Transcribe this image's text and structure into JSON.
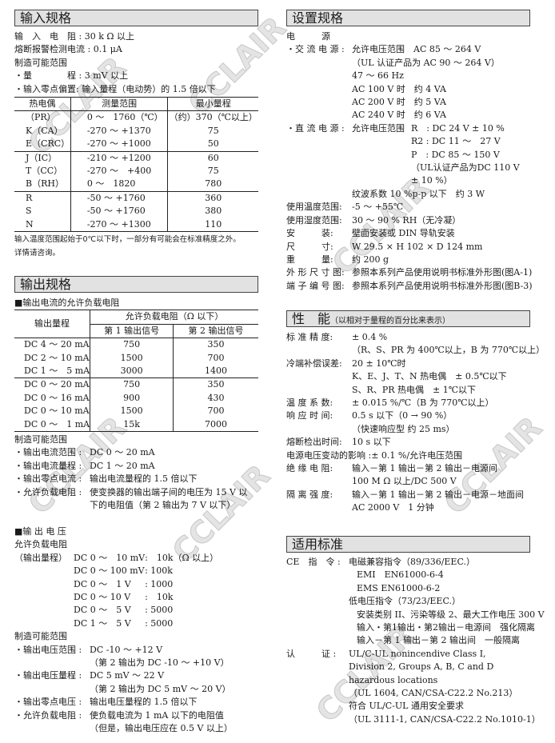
{
  "watermark": "CCLAIR",
  "input": {
    "title": "输入规格",
    "lines": [
      "输　入　电　阻 : 30 k Ω 以上",
      "熔断报警检测电流 : 0.1 μA",
      "制造可能范围",
      "・量　　　　程 : 3 mV 以上",
      "・输入零点偏置: 输入量程（电动势）的 1.5 倍以下"
    ],
    "table": {
      "headers": [
        "热电偶",
        "测量范围",
        "最小量程"
      ],
      "groups": [
        [
          [
            "（PR）",
            "0 ～　1760（℃）",
            "（约）370（℃以上）"
          ],
          [
            "K（CA）",
            "-270 ～ +1370",
            "75"
          ],
          [
            "E（CRC）",
            "-270 ～ +1000",
            "50"
          ]
        ],
        [
          [
            "J（IC）",
            "-210 ～ +1200",
            "60"
          ],
          [
            "T（CC）",
            "-270 ～　+400",
            "75"
          ],
          [
            "B（RH）",
            "0 ～　1820",
            "780"
          ]
        ],
        [
          [
            "R",
            "-50 ～ +1760",
            "360"
          ],
          [
            "S",
            "-50 ～ +1760",
            "380"
          ],
          [
            "N",
            "-270 ～ +1300",
            "110"
          ]
        ]
      ]
    },
    "note": [
      "输入温度范围起始于0℃以下时，一部分有可能会在标准精度之外。",
      "详情请咨询。"
    ]
  },
  "output": {
    "title": "输出规格",
    "current_heading": "■输出电流的允许负载电阻",
    "table": {
      "h_range": "输出量程",
      "h_load": "允许负载电阻（Ω 以下）",
      "h_out1": "第 1 输出信号",
      "h_out2": "第 2 输出信号",
      "groups": [
        [
          [
            "DC 4 ～ 20 mA",
            "750",
            "350"
          ],
          [
            "DC 2 ～ 10 mA",
            "1500",
            "700"
          ],
          [
            "DC 1 ～　5 mA",
            "3000",
            "1400"
          ]
        ],
        [
          [
            "DC 0 ～ 20 mA",
            "750",
            "350"
          ],
          [
            "DC 0 ～ 16 mA",
            "900",
            "430"
          ],
          [
            "DC 0 ～ 10 mA",
            "1500",
            "700"
          ],
          [
            "DC 0 ～　1 mA",
            "15k",
            "7000"
          ]
        ]
      ]
    },
    "current_lines": [
      {
        "label": "制造可能范围"
      },
      {
        "label": "・输出电流范围 :",
        "value": "DC 0 ～ 20 mA"
      },
      {
        "label": "・输出电流量程 :",
        "value": "DC 1 ～ 20 mA"
      },
      {
        "label": "・输出零点电流 :",
        "value": "输出电流量程的 1.5 倍以下"
      },
      {
        "label": "・允许负载电阻 :",
        "value": [
          "使变换器的输出端子间的电压为 15 V 以",
          "下的电阻值（第 2 输出为 7 V 以下）"
        ]
      }
    ],
    "voltage_heading": "■输 出 电 压",
    "voltage_sub": "允许负载电阻",
    "voltage_label": "（输出量程）",
    "voltage_rows": [
      [
        "DC 0 ～　10 mV",
        ":　10k（Ω 以上）"
      ],
      [
        "DC 0 ～ 100 mV",
        ": 100k"
      ],
      [
        "DC 0 ～　1 V",
        ": 1000"
      ],
      [
        "DC 0 ～ 10 V",
        ":　10k"
      ],
      [
        "DC 0 ～　5 V",
        ": 5000"
      ],
      [
        "DC 1 ～　5 V",
        ": 5000"
      ]
    ],
    "voltage_lines": [
      {
        "label": "制造可能范围"
      },
      {
        "label": "・输出电压范围 :",
        "value": [
          "DC -10 ～ +12 V",
          "（第 2 输出为 DC -10 ～ +10 V）"
        ]
      },
      {
        "label": "・输出电压量程 :",
        "value": [
          "DC 5 mV ～ 22 V",
          "（第 2 输出为 DC 5 mV ～ 20 V）"
        ]
      },
      {
        "label": "・输出零点电压 :",
        "value": "输出电压量程的 1.5 倍以下"
      },
      {
        "label": "・允许负载电阻 :",
        "value": [
          "使负载电流为 1 mA 以下的电阻值",
          "（但是，输出电压应在 0.5 V 以上）"
        ]
      }
    ]
  },
  "setup": {
    "title": "设置规格",
    "lines": [
      {
        "label": "电　　　源"
      },
      {
        "label": "・交 流 电 源 :",
        "value": [
          "允许电压范围　AC 85 ～ 264 V",
          "（UL 认证产品为 AC 90 ～ 264 V）",
          "47 ～ 66 Hz",
          "AC 100 V 时　约 4 VA",
          "AC 200 V 时　约 5 VA",
          "AC 240 V 时　约 6 VA"
        ]
      },
      {
        "label": "・直 流 电 源 :",
        "value": "允许电压范围",
        "col": [
          "R　: DC 24 V ± 10 %",
          "R2 : DC 11 ～　27 V",
          "P　: DC 85 ～ 150 V",
          "（UL认证产品为DC 110 V",
          "± 10 %）"
        ]
      },
      {
        "label": "",
        "value": "纹波系数 10 %p-p 以下　约 3 W"
      },
      {
        "label": "使用温度范围:",
        "value": "-5 ～ +55℃"
      },
      {
        "label": "使用湿度范围:",
        "value": "30 ～ 90 % RH（无冷凝）"
      },
      {
        "label": "安　　　装:",
        "value": "壁面安装或 DIN 导轨安装"
      },
      {
        "label": "尺　　　寸:",
        "value": "W 29.5 × H 102 × D 124 mm"
      },
      {
        "label": "重　　　量:",
        "value": "约 200 g"
      },
      {
        "label": "外 形 尺 寸 图:",
        "value": "参照本系列产品使用说明书标准外形图(图A-1)"
      },
      {
        "label": "端 子 编 号 图:",
        "value": "参照本系列产品使用说明书标准外形图(图B-3)"
      }
    ]
  },
  "performance": {
    "title": "性　能",
    "title_note": "（以相对于量程的百分比来表示）",
    "lines": [
      {
        "label": "标 准 精 度:",
        "value": [
          "± 0.4 %",
          "（R、S、PR 为 400℃以上，B 为 770℃以上）"
        ]
      },
      {
        "label": "冷端补偿误差:",
        "value": [
          "20 ± 10℃时",
          "K、E、J、T、N 热电偶　± 0.5℃以下",
          "S、R、PR 热电偶　± 1℃以下"
        ]
      },
      {
        "label": "温 度 系 数:",
        "value": "± 0.015 %/℃（B 为 770℃以上）"
      },
      {
        "label": "响 应 时 间:",
        "value": [
          "0.5 s 以下（0 → 90 %）",
          "（快速响应型 约 25 ms）"
        ]
      },
      {
        "label": "熔断检出时间:",
        "value": "10 s 以下"
      },
      {
        "label": "电源电压变动的影响 :",
        "value": "± 0.1 %/允许电压范围"
      },
      {
        "label": "绝 缘 电 阻:",
        "value": [
          "输入－第 1 输出－第 2 输出－电源间",
          "100 M Ω 以上/DC 500 V"
        ]
      },
      {
        "label": "隔 离 强 度:",
        "value": [
          "输入－第 1 输出－第 2 输出－电源－地面间",
          "AC 2000 V　1 分钟"
        ]
      }
    ]
  },
  "standards": {
    "title": "适用标准",
    "lines": [
      {
        "label": "CE　指　令 :",
        "value": [
          "电磁兼容指令（89/336/EEC.）",
          [
            "EMI　EN61000-6-4",
            "EMS EN61000-6-2"
          ],
          "低电压指令（73/23/EEC.）",
          [
            "安装类别 II、污染等级 2、最大工作电压 300 V",
            "输入・第1输出・第2输出－电源间　强化隔离",
            "输入－第 1 输出－第 2 输出间　一般隔离"
          ]
        ]
      },
      {
        "label": "认　　　证 :",
        "value": [
          "UL/C-UL nonincendive Class I,",
          "Division 2, Groups A, B, C and D",
          "hazardous locations",
          "（UL 1604, CAN/CSA-C22.2 No.213）",
          "符合 UL/C-UL 通用安全要求",
          "（UL 3111-1, CAN/CSA-C22.2 No.1010-1）"
        ]
      }
    ]
  }
}
